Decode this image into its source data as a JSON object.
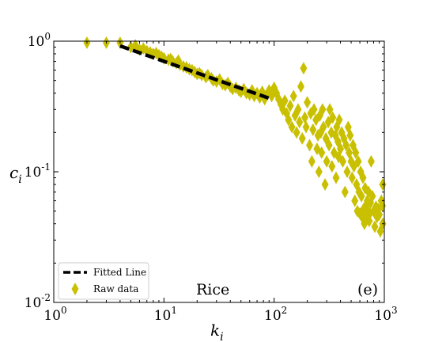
{
  "chart_data": {
    "type": "scatter",
    "x_scale": "log",
    "y_scale": "log",
    "xlim": [
      1,
      1000
    ],
    "ylim": [
      0.01,
      1
    ],
    "xlabel": {
      "base": "k",
      "sub": "i"
    },
    "ylabel": {
      "base": "c",
      "sub": "i"
    },
    "x_ticks": [
      {
        "value": 1,
        "base": "10",
        "exp": "0"
      },
      {
        "value": 10,
        "base": "10",
        "exp": "1"
      },
      {
        "value": 100,
        "base": "10",
        "exp": "2"
      },
      {
        "value": 1000,
        "base": "10",
        "exp": "3"
      }
    ],
    "y_ticks": [
      {
        "value": 0.01,
        "base": "10",
        "exp": "-2"
      },
      {
        "value": 0.1,
        "base": "10",
        "exp": "-1"
      },
      {
        "value": 1,
        "base": "10",
        "exp": "0"
      }
    ],
    "legend": {
      "placement": "lower-left",
      "entries": [
        "Fitted Line",
        "Raw data"
      ]
    },
    "annotations": {
      "center_label": "Rice",
      "panel_label": "(e)"
    },
    "colors": {
      "raw": "#c8c000",
      "fit": "#000000"
    },
    "series": [
      {
        "name": "Fitted Line",
        "kind": "dashed-line",
        "points": [
          [
            4,
            0.92
          ],
          [
            95,
            0.36
          ]
        ]
      },
      {
        "name": "Raw data",
        "kind": "diamond-markers",
        "points": [
          [
            2,
            1.0
          ],
          [
            3,
            1.0
          ],
          [
            4,
            0.98
          ],
          [
            5,
            0.9
          ],
          [
            5.5,
            0.93
          ],
          [
            6,
            0.86
          ],
          [
            6.5,
            0.88
          ],
          [
            7,
            0.84
          ],
          [
            7.5,
            0.82
          ],
          [
            8,
            0.8
          ],
          [
            8.5,
            0.81
          ],
          [
            9,
            0.78
          ],
          [
            9.5,
            0.76
          ],
          [
            10,
            0.74
          ],
          [
            11,
            0.72
          ],
          [
            11.5,
            0.73
          ],
          [
            12,
            0.7
          ],
          [
            13,
            0.68
          ],
          [
            13.5,
            0.71
          ],
          [
            14,
            0.66
          ],
          [
            15,
            0.64
          ],
          [
            16,
            0.63
          ],
          [
            17,
            0.61
          ],
          [
            18,
            0.6
          ],
          [
            19,
            0.58
          ],
          [
            20,
            0.56
          ],
          [
            21,
            0.57
          ],
          [
            22,
            0.55
          ],
          [
            24,
            0.53
          ],
          [
            25,
            0.55
          ],
          [
            27,
            0.52
          ],
          [
            28,
            0.5
          ],
          [
            30,
            0.49
          ],
          [
            32,
            0.51
          ],
          [
            34,
            0.47
          ],
          [
            36,
            0.46
          ],
          [
            38,
            0.48
          ],
          [
            40,
            0.45
          ],
          [
            42,
            0.43
          ],
          [
            45,
            0.44
          ],
          [
            48,
            0.42
          ],
          [
            50,
            0.41
          ],
          [
            53,
            0.43
          ],
          [
            56,
            0.4
          ],
          [
            60,
            0.39
          ],
          [
            63,
            0.42
          ],
          [
            66,
            0.38
          ],
          [
            70,
            0.4
          ],
          [
            74,
            0.37
          ],
          [
            78,
            0.41
          ],
          [
            82,
            0.36
          ],
          [
            86,
            0.39
          ],
          [
            90,
            0.42
          ],
          [
            95,
            0.38
          ],
          [
            100,
            0.44
          ],
          [
            105,
            0.4
          ],
          [
            110,
            0.36
          ],
          [
            115,
            0.33
          ],
          [
            120,
            0.3
          ],
          [
            125,
            0.35
          ],
          [
            130,
            0.28
          ],
          [
            135,
            0.25
          ],
          [
            140,
            0.32
          ],
          [
            145,
            0.22
          ],
          [
            150,
            0.38
          ],
          [
            155,
            0.27
          ],
          [
            160,
            0.2
          ],
          [
            165,
            0.3
          ],
          [
            170,
            0.24
          ],
          [
            175,
            0.45
          ],
          [
            180,
            0.18
          ],
          [
            185,
            0.62
          ],
          [
            190,
            0.26
          ],
          [
            195,
            0.22
          ],
          [
            200,
            0.34
          ],
          [
            210,
            0.16
          ],
          [
            215,
            0.28
          ],
          [
            220,
            0.12
          ],
          [
            225,
            0.21
          ],
          [
            230,
            0.3
          ],
          [
            240,
            0.25
          ],
          [
            245,
            0.15
          ],
          [
            250,
            0.19
          ],
          [
            255,
            0.1
          ],
          [
            260,
            0.27
          ],
          [
            265,
            0.2
          ],
          [
            270,
            0.14
          ],
          [
            275,
            0.3
          ],
          [
            280,
            0.22
          ],
          [
            290,
            0.08
          ],
          [
            295,
            0.18
          ],
          [
            300,
            0.12
          ],
          [
            310,
            0.24
          ],
          [
            315,
            0.16
          ],
          [
            320,
            0.3
          ],
          [
            330,
            0.2
          ],
          [
            335,
            0.11
          ],
          [
            340,
            0.26
          ],
          [
            350,
            0.14
          ],
          [
            360,
            0.19
          ],
          [
            365,
            0.09
          ],
          [
            370,
            0.22
          ],
          [
            380,
            0.17
          ],
          [
            385,
            0.13
          ],
          [
            390,
            0.25
          ],
          [
            400,
            0.15
          ],
          [
            410,
            0.2
          ],
          [
            420,
            0.12
          ],
          [
            430,
            0.18
          ],
          [
            440,
            0.07
          ],
          [
            450,
            0.16
          ],
          [
            460,
            0.1
          ],
          [
            470,
            0.22
          ],
          [
            480,
            0.14
          ],
          [
            490,
            0.19
          ],
          [
            500,
            0.12
          ],
          [
            510,
            0.09
          ],
          [
            520,
            0.16
          ],
          [
            530,
            0.11
          ],
          [
            540,
            0.06
          ],
          [
            550,
            0.14
          ],
          [
            560,
            0.08
          ],
          [
            570,
            0.05
          ],
          [
            580,
            0.12
          ],
          [
            590,
            0.07
          ],
          [
            600,
            0.048
          ],
          [
            610,
            0.1
          ],
          [
            620,
            0.065
          ],
          [
            630,
            0.045
          ],
          [
            640,
            0.09
          ],
          [
            650,
            0.052
          ],
          [
            660,
            0.04
          ],
          [
            670,
            0.075
          ],
          [
            680,
            0.055
          ],
          [
            690,
            0.046
          ],
          [
            700,
            0.06
          ],
          [
            710,
            0.05
          ],
          [
            720,
            0.07
          ],
          [
            730,
            0.042
          ],
          [
            740,
            0.048
          ],
          [
            750,
            0.058
          ],
          [
            760,
            0.12
          ],
          [
            780,
            0.065
          ],
          [
            800,
            0.05
          ],
          [
            820,
            0.038
          ],
          [
            840,
            0.054
          ],
          [
            860,
            0.045
          ],
          [
            880,
            0.052
          ],
          [
            900,
            0.047
          ],
          [
            920,
            0.035
          ],
          [
            940,
            0.06
          ],
          [
            960,
            0.055
          ],
          [
            980,
            0.08
          ],
          [
            990,
            0.04
          ]
        ]
      }
    ]
  }
}
